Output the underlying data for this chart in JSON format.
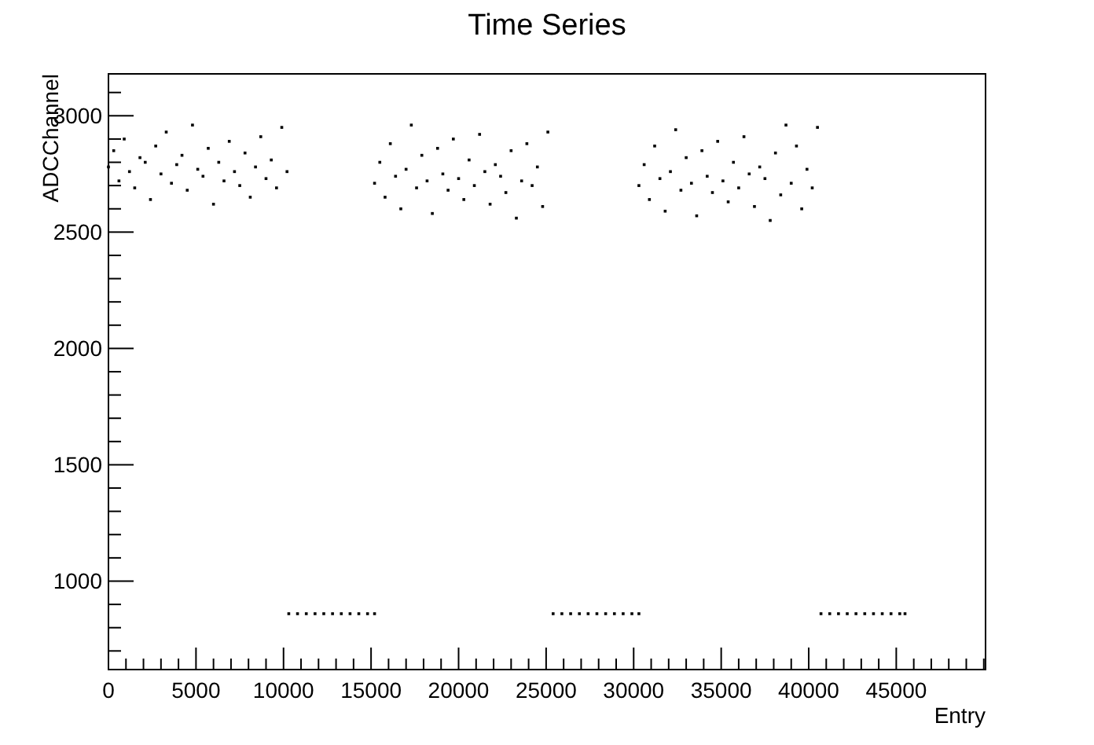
{
  "chart_data": {
    "type": "scatter",
    "title": "Time Series",
    "xlabel": "Entry",
    "ylabel": "ADCChannel",
    "marker": "square",
    "grid": false,
    "xlim": [
      0,
      50100
    ],
    "ylim": [
      620,
      3180
    ],
    "xticks": [
      0,
      {
        "value": 1000,
        "label": null
      },
      {
        "value": 2000,
        "label": null
      },
      {
        "value": 3000,
        "label": null
      },
      {
        "value": 4000,
        "label": null
      },
      5000,
      {
        "value": 6000,
        "label": null
      },
      {
        "value": 7000,
        "label": null
      },
      {
        "value": 8000,
        "label": null
      },
      {
        "value": 9000,
        "label": null
      },
      10000,
      {
        "value": 11000,
        "label": null
      },
      {
        "value": 12000,
        "label": null
      },
      {
        "value": 13000,
        "label": null
      },
      {
        "value": 14000,
        "label": null
      },
      15000,
      {
        "value": 16000,
        "label": null
      },
      {
        "value": 17000,
        "label": null
      },
      {
        "value": 18000,
        "label": null
      },
      {
        "value": 19000,
        "label": null
      },
      20000,
      {
        "value": 21000,
        "label": null
      },
      {
        "value": 22000,
        "label": null
      },
      {
        "value": 23000,
        "label": null
      },
      {
        "value": 24000,
        "label": null
      },
      25000,
      {
        "value": 26000,
        "label": null
      },
      {
        "value": 27000,
        "label": null
      },
      {
        "value": 28000,
        "label": null
      },
      {
        "value": 29000,
        "label": null
      },
      30000,
      {
        "value": 31000,
        "label": null
      },
      {
        "value": 32000,
        "label": null
      },
      {
        "value": 33000,
        "label": null
      },
      {
        "value": 34000,
        "label": null
      },
      35000,
      {
        "value": 36000,
        "label": null
      },
      {
        "value": 37000,
        "label": null
      },
      {
        "value": 38000,
        "label": null
      },
      {
        "value": 39000,
        "label": null
      },
      40000,
      {
        "value": 41000,
        "label": null
      },
      {
        "value": 42000,
        "label": null
      },
      {
        "value": 43000,
        "label": null
      },
      {
        "value": 44000,
        "label": null
      },
      45000,
      {
        "value": 46000,
        "label": null
      },
      {
        "value": 47000,
        "label": null
      },
      {
        "value": 48000,
        "label": null
      },
      {
        "value": 49000,
        "label": null
      },
      {
        "value": 50000,
        "label": null
      }
    ],
    "yticks": [
      {
        "value": 700,
        "label": null
      },
      {
        "value": 800,
        "label": null
      },
      {
        "value": 900,
        "label": null
      },
      1000,
      {
        "value": 1100,
        "label": null
      },
      {
        "value": 1200,
        "label": null
      },
      {
        "value": 1300,
        "label": null
      },
      {
        "value": 1400,
        "label": null
      },
      1500,
      {
        "value": 1600,
        "label": null
      },
      {
        "value": 1700,
        "label": null
      },
      {
        "value": 1800,
        "label": null
      },
      {
        "value": 1900,
        "label": null
      },
      2000,
      {
        "value": 2100,
        "label": null
      },
      {
        "value": 2200,
        "label": null
      },
      {
        "value": 2300,
        "label": null
      },
      {
        "value": 2400,
        "label": null
      },
      2500,
      {
        "value": 2600,
        "label": null
      },
      {
        "value": 2700,
        "label": null
      },
      {
        "value": 2800,
        "label": null
      },
      {
        "value": 2900,
        "label": null
      },
      3000,
      {
        "value": 3100,
        "label": null
      }
    ],
    "series": [
      {
        "color": "#000000",
        "x": [
          0,
          300,
          600,
          900,
          1200,
          1500,
          1800,
          2100,
          2400,
          2700,
          3000,
          3300,
          3600,
          3900,
          4200,
          4500,
          4800,
          5100,
          5400,
          5700,
          6000,
          6300,
          6600,
          6900,
          7200,
          7500,
          7800,
          8100,
          8400,
          8700,
          9000,
          9300,
          9600,
          9900,
          10200,
          10300,
          10800,
          11300,
          11800,
          12300,
          12800,
          13300,
          13800,
          14300,
          14800,
          15200,
          15200,
          15500,
          15800,
          16100,
          16400,
          16700,
          17000,
          17300,
          17600,
          17900,
          18200,
          18500,
          18800,
          19100,
          19400,
          19700,
          20000,
          20300,
          20600,
          20900,
          21200,
          21500,
          21800,
          22100,
          22400,
          22700,
          23000,
          23300,
          23600,
          23900,
          24200,
          24500,
          24800,
          25100,
          25400,
          25900,
          26400,
          26900,
          27400,
          27900,
          28400,
          28900,
          29400,
          29900,
          30300,
          30300,
          30600,
          30900,
          31200,
          31500,
          31800,
          32100,
          32400,
          32700,
          33000,
          33300,
          33600,
          33900,
          34200,
          34500,
          34800,
          35100,
          35400,
          35700,
          36000,
          36300,
          36600,
          36900,
          37200,
          37500,
          37800,
          38100,
          38400,
          38700,
          39000,
          39300,
          39600,
          39900,
          40200,
          40500,
          40700,
          41200,
          41700,
          42200,
          42700,
          43200,
          43700,
          44200,
          44700,
          45200,
          45500
        ],
        "values": [
          2780,
          2850,
          2720,
          2900,
          2760,
          2690,
          2820,
          2800,
          2640,
          2870,
          2750,
          2930,
          2710,
          2790,
          2830,
          2680,
          2960,
          2770,
          2740,
          2860,
          2620,
          2800,
          2720,
          2890,
          2760,
          2700,
          2840,
          2650,
          2780,
          2910,
          2730,
          2810,
          2690,
          2950,
          2760,
          860,
          860,
          860,
          860,
          860,
          860,
          860,
          860,
          860,
          860,
          860,
          2710,
          2800,
          2650,
          2880,
          2740,
          2600,
          2770,
          2960,
          2690,
          2830,
          2720,
          2580,
          2860,
          2750,
          2680,
          2900,
          2730,
          2640,
          2810,
          2700,
          2920,
          2760,
          2620,
          2790,
          2740,
          2670,
          2850,
          2560,
          2720,
          2880,
          2700,
          2780,
          2610,
          2930,
          860,
          860,
          860,
          860,
          860,
          860,
          860,
          860,
          860,
          860,
          860,
          2700,
          2790,
          2640,
          2870,
          2730,
          2590,
          2760,
          2940,
          2680,
          2820,
          2710,
          2570,
          2850,
          2740,
          2670,
          2890,
          2720,
          2630,
          2800,
          2690,
          2910,
          2750,
          2610,
          2780,
          2730,
          2550,
          2840,
          2660,
          2960,
          2710,
          2870,
          2600,
          2770,
          2690,
          2950,
          860,
          860,
          860,
          860,
          860,
          860,
          860,
          860,
          860,
          860,
          860
        ]
      }
    ]
  }
}
